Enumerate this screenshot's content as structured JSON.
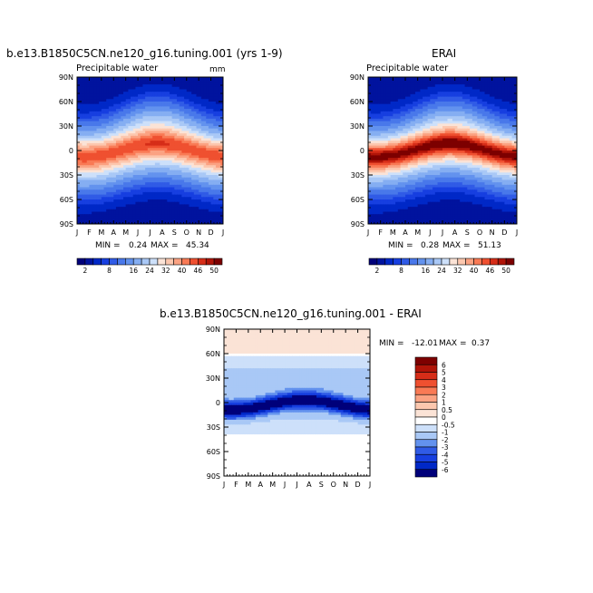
{
  "chart_data": [
    {
      "id": "model",
      "type": "heatmap",
      "title": "b.e13.B1850C5CN.ne120_g16.tuning.001 (yrs 1-9)",
      "subtitle": "Precipitable water",
      "units_label": "mm",
      "x_ticks": [
        "J",
        "F",
        "M",
        "A",
        "M",
        "J",
        "J",
        "A",
        "S",
        "O",
        "N",
        "D",
        "J"
      ],
      "y_ticks": [
        "90N",
        "60N",
        "30N",
        "0",
        "30S",
        "60S",
        "90S"
      ],
      "y_values": [
        90,
        60,
        30,
        0,
        -30,
        -60,
        -90
      ],
      "stats": {
        "min_label": "MIN =",
        "min": "0.24",
        "max_label": "MAX =",
        "max": "45.34"
      },
      "peak": 45,
      "peak_shift": 0.35
    },
    {
      "id": "obs",
      "type": "heatmap",
      "title": "ERAI",
      "subtitle": "Precipitable water",
      "x_ticks": [
        "J",
        "F",
        "M",
        "A",
        "M",
        "J",
        "J",
        "A",
        "S",
        "O",
        "N",
        "D",
        "J"
      ],
      "y_ticks": [
        "90N",
        "60N",
        "30N",
        "0",
        "30S",
        "60S",
        "90S"
      ],
      "y_values": [
        90,
        60,
        30,
        0,
        -30,
        -60,
        -90
      ],
      "stats": {
        "min_label": "MIN =",
        "min": "0.28",
        "max_label": "MAX =",
        "max": "51.13"
      },
      "peak": 51,
      "peak_shift": 0.35
    },
    {
      "id": "diff",
      "type": "heatmap",
      "title": "b.e13.B1850C5CN.ne120_g16.tuning.001  -  ERAI",
      "x_ticks": [
        "J",
        "F",
        "M",
        "A",
        "M",
        "J",
        "J",
        "A",
        "S",
        "O",
        "N",
        "D",
        "J"
      ],
      "y_ticks": [
        "90N",
        "60N",
        "30N",
        "0",
        "30S",
        "60S",
        "90S"
      ],
      "y_values": [
        90,
        60,
        30,
        0,
        -30,
        -60,
        -90
      ],
      "stats": {
        "min_label": "MIN =",
        "min": "-12.01",
        "max_label": "MAX =",
        "max": "0.37"
      }
    }
  ],
  "colorbar_main": {
    "labels": [
      "2",
      "8",
      "16",
      "24",
      "32",
      "40",
      "46",
      "50"
    ],
    "levels": [
      2,
      4,
      6,
      8,
      10,
      13,
      16,
      20,
      24,
      28,
      32,
      36,
      40,
      43,
      46,
      48,
      50
    ],
    "colors": [
      "#00007a",
      "#00139e",
      "#0028c7",
      "#173fe0",
      "#305be6",
      "#4978ea",
      "#6392ee",
      "#85aef2",
      "#a9c8f6",
      "#cde0fa",
      "#fbe3d6",
      "#fcc7ae",
      "#fba282",
      "#f97a55",
      "#ef5030",
      "#d62d18",
      "#b01408",
      "#7d0000"
    ]
  },
  "colorbar_diff": {
    "labels": [
      "6",
      "5",
      "4",
      "3",
      "2",
      "1",
      "0.5",
      "0",
      "-0.5",
      "-1",
      "-2",
      "-3",
      "-4",
      "-5",
      "-6"
    ],
    "colors": [
      "#7d0000",
      "#b01408",
      "#d62d18",
      "#ef5030",
      "#f97a55",
      "#fba282",
      "#fcc7ae",
      "#fbe3d6",
      "#ffffff",
      "#cde0fa",
      "#a9c8f6",
      "#6392ee",
      "#305be6",
      "#173fe0",
      "#0028c7",
      "#00007a"
    ]
  }
}
